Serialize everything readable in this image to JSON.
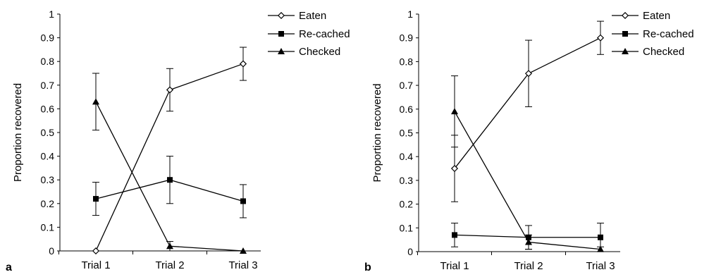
{
  "chart_data": [
    {
      "type": "line",
      "panel_label": "a",
      "title": "",
      "xlabel": "",
      "ylabel": "Proportion recovered",
      "ylim": [
        0,
        1
      ],
      "yticks": [
        "0",
        "0.1",
        "0.2",
        "0.3",
        "0.4",
        "0.5",
        "0.6",
        "0.7",
        "0.8",
        "0.9",
        "1"
      ],
      "categories": [
        "Trial 1",
        "Trial 2",
        "Trial 3"
      ],
      "grid": false,
      "legend_position": "top-right",
      "series": [
        {
          "name": "Eaten",
          "marker": "open-diamond",
          "values": [
            0.0,
            0.68,
            0.79
          ],
          "error": [
            0,
            0.09,
            0.07
          ]
        },
        {
          "name": "Re-cached",
          "marker": "filled-square",
          "values": [
            0.22,
            0.3,
            0.21
          ],
          "error": [
            0.07,
            0.1,
            0.07
          ]
        },
        {
          "name": "Checked",
          "marker": "filled-triangle",
          "values": [
            0.63,
            0.02,
            0.0
          ],
          "error": [
            0.12,
            0.02,
            0
          ]
        }
      ]
    },
    {
      "type": "line",
      "panel_label": "b",
      "title": "",
      "xlabel": "",
      "ylabel": "Proportion recovered",
      "ylim": [
        0,
        1
      ],
      "yticks": [
        "0",
        "0.1",
        "0.2",
        "0.3",
        "0.4",
        "0.5",
        "0.6",
        "0.7",
        "0.8",
        "0.9",
        "1"
      ],
      "categories": [
        "Trial 1",
        "Trial 2",
        "Trial 3"
      ],
      "grid": false,
      "legend_position": "top-right",
      "series": [
        {
          "name": "Eaten",
          "marker": "open-diamond",
          "values": [
            0.35,
            0.75,
            0.9
          ],
          "error": [
            0.14,
            0.14,
            0.07
          ]
        },
        {
          "name": "Re-cached",
          "marker": "filled-square",
          "values": [
            0.07,
            0.06,
            0.06
          ],
          "error": [
            0.05,
            0.05,
            0.06
          ]
        },
        {
          "name": "Checked",
          "marker": "filled-triangle",
          "values": [
            0.59,
            0.04,
            0.01
          ],
          "error": [
            0.15,
            0.03,
            0.01
          ]
        }
      ]
    }
  ]
}
